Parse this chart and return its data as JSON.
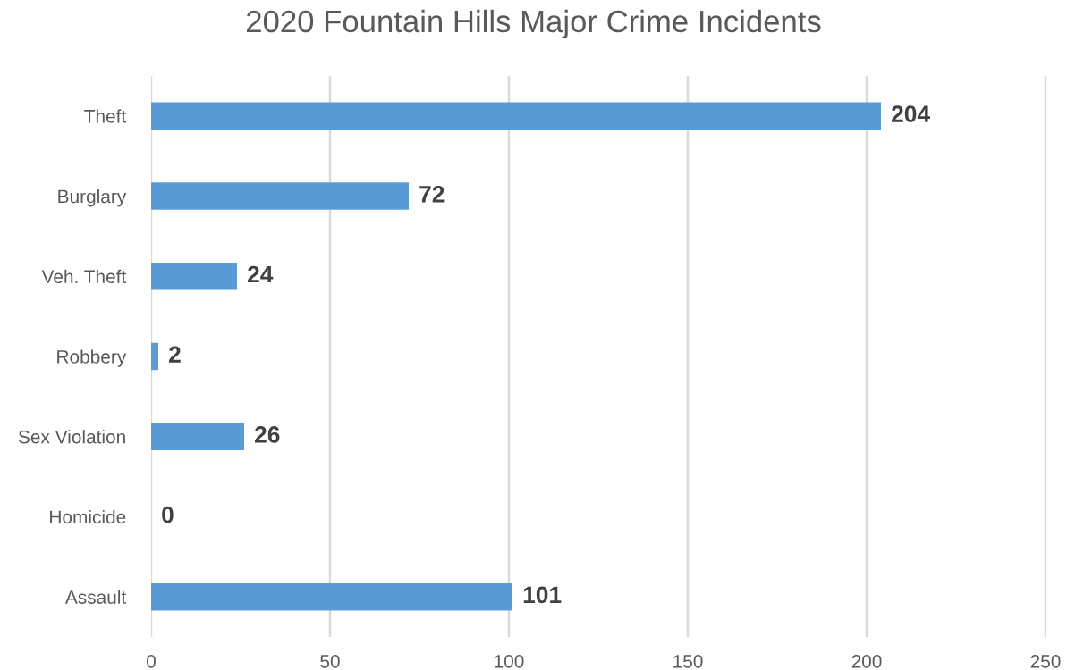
{
  "chart_data": {
    "type": "bar",
    "orientation": "horizontal",
    "title": "2020 Fountain Hills Major Crime Incidents",
    "categories": [
      "Theft",
      "Burglary",
      "Veh. Theft",
      "Robbery",
      "Sex Violation",
      "Homicide",
      "Assault"
    ],
    "values": [
      204,
      72,
      24,
      2,
      26,
      0,
      101
    ],
    "color": "#5b9bd5",
    "xlim": [
      0,
      250
    ],
    "xticks": [
      0,
      50,
      100,
      150,
      200,
      250
    ],
    "grid": "x",
    "data_labels": true
  }
}
